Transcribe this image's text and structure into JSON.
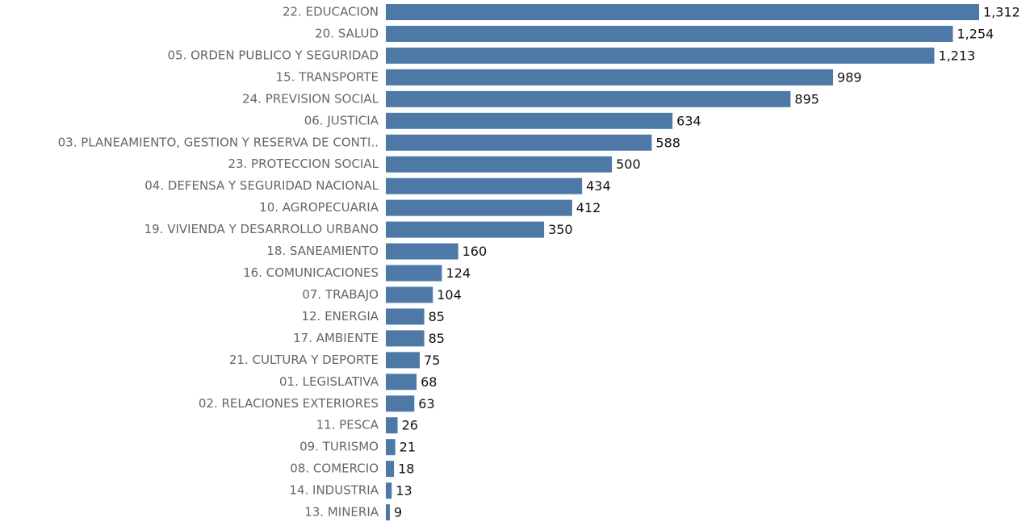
{
  "chart_data": {
    "type": "bar",
    "orientation": "horizontal",
    "color": "#4e79a7",
    "categories": [
      "22. EDUCACION",
      "20. SALUD",
      "05. ORDEN PUBLICO Y SEGURIDAD",
      "15. TRANSPORTE",
      "24. PREVISION SOCIAL",
      "06. JUSTICIA",
      "03. PLANEAMIENTO, GESTION Y RESERVA DE CONTI..",
      "23. PROTECCION SOCIAL",
      "04. DEFENSA Y SEGURIDAD NACIONAL",
      "10. AGROPECUARIA",
      "19. VIVIENDA Y DESARROLLO URBANO",
      "18. SANEAMIENTO",
      "16. COMUNICACIONES",
      "07. TRABAJO",
      "12. ENERGIA",
      "17. AMBIENTE",
      "21. CULTURA Y DEPORTE",
      "01. LEGISLATIVA",
      "02. RELACIONES EXTERIORES",
      "11. PESCA",
      "09. TURISMO",
      "08. COMERCIO",
      "14. INDUSTRIA",
      "13. MINERIA"
    ],
    "values": [
      1312,
      1254,
      1213,
      989,
      895,
      634,
      588,
      500,
      434,
      412,
      350,
      160,
      124,
      104,
      85,
      85,
      75,
      68,
      63,
      26,
      21,
      18,
      13,
      9
    ],
    "value_labels": [
      "1,312",
      "1,254",
      "1,213",
      "989",
      "895",
      "634",
      "588",
      "500",
      "434",
      "412",
      "350",
      "160",
      "124",
      "104",
      "85",
      "85",
      "75",
      "68",
      "63",
      "26",
      "21",
      "18",
      "13",
      "9"
    ]
  }
}
